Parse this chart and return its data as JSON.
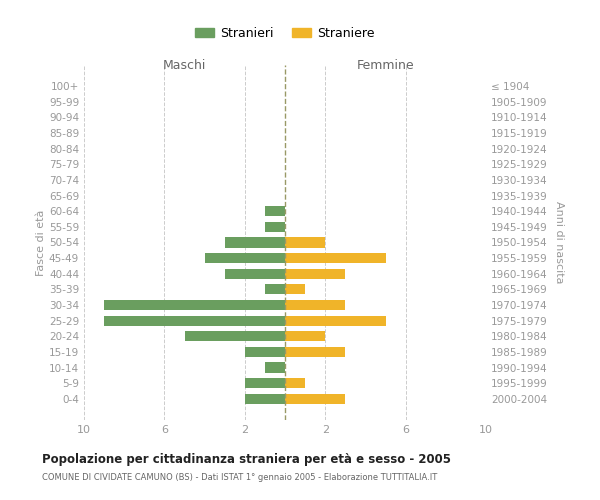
{
  "age_groups": [
    "100+",
    "95-99",
    "90-94",
    "85-89",
    "80-84",
    "75-79",
    "70-74",
    "65-69",
    "60-64",
    "55-59",
    "50-54",
    "45-49",
    "40-44",
    "35-39",
    "30-34",
    "25-29",
    "20-24",
    "15-19",
    "10-14",
    "5-9",
    "0-4"
  ],
  "birth_years": [
    "≤ 1904",
    "1905-1909",
    "1910-1914",
    "1915-1919",
    "1920-1924",
    "1925-1929",
    "1930-1934",
    "1935-1939",
    "1940-1944",
    "1945-1949",
    "1950-1954",
    "1955-1959",
    "1960-1964",
    "1965-1969",
    "1970-1974",
    "1975-1979",
    "1980-1984",
    "1985-1989",
    "1990-1994",
    "1995-1999",
    "2000-2004"
  ],
  "maschi": [
    0,
    0,
    0,
    0,
    0,
    0,
    0,
    0,
    1,
    1,
    3,
    4,
    3,
    1,
    9,
    9,
    5,
    2,
    1,
    2,
    2
  ],
  "femmine": [
    0,
    0,
    0,
    0,
    0,
    0,
    0,
    0,
    0,
    0,
    2,
    5,
    3,
    1,
    3,
    5,
    2,
    3,
    0,
    1,
    3
  ],
  "color_maschi": "#6a9e5f",
  "color_femmine": "#f0b429",
  "xlim": 10,
  "title": "Popolazione per cittadinanza straniera per età e sesso - 2005",
  "subtitle": "COMUNE DI CIVIDATE CAMUNO (BS) - Dati ISTAT 1° gennaio 2005 - Elaborazione TUTTITALIA.IT",
  "ylabel_left": "Fasce di età",
  "ylabel_right": "Anni di nascita",
  "label_maschi": "Maschi",
  "label_femmine": "Femmine",
  "legend_maschi": "Stranieri",
  "legend_femmine": "Straniere",
  "background_color": "#ffffff",
  "grid_color": "#cccccc",
  "tick_label_color": "#999999",
  "label_color": "#666666",
  "dashed_line_color": "#999966",
  "title_color": "#222222",
  "subtitle_color": "#666666"
}
